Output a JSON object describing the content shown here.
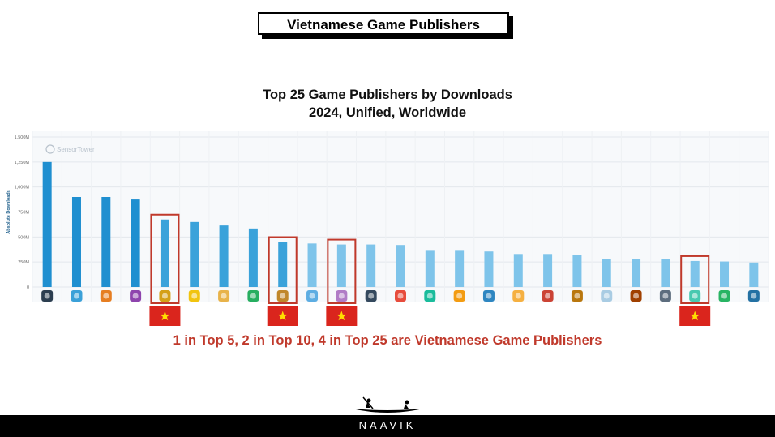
{
  "header": {
    "title": "Vietnamese Game Publishers"
  },
  "chart_data": {
    "type": "bar",
    "title_line1": "Top 25 Game Publishers by Downloads",
    "title_line2": "2024, Unified, Worldwide",
    "ylabel": "Absolute Downloads",
    "ylim": [
      0,
      1500
    ],
    "yticks": [
      "0",
      "250M",
      "500M",
      "750M",
      "1,000M",
      "1,250M",
      "1,500M"
    ],
    "watermark": "SensorTower",
    "values": [
      1250,
      900,
      900,
      875,
      675,
      650,
      615,
      585,
      450,
      435,
      425,
      425,
      420,
      370,
      370,
      355,
      330,
      330,
      320,
      280,
      280,
      280,
      260,
      255,
      245
    ],
    "highlighted_indices": [
      4,
      8,
      10,
      22
    ],
    "colors": {
      "dark_bar": "#1f8fd0",
      "light_bar": "#7ec4ea",
      "highlight_box": "#c0392b",
      "flag_red": "#da251d",
      "flag_star": "#ffde00"
    }
  },
  "callout": "1 in Top 5, 2 in Top 10, 4 in Top 25 are Vietnamese Game Publishers",
  "footer": {
    "brand": "NAAVIK"
  }
}
